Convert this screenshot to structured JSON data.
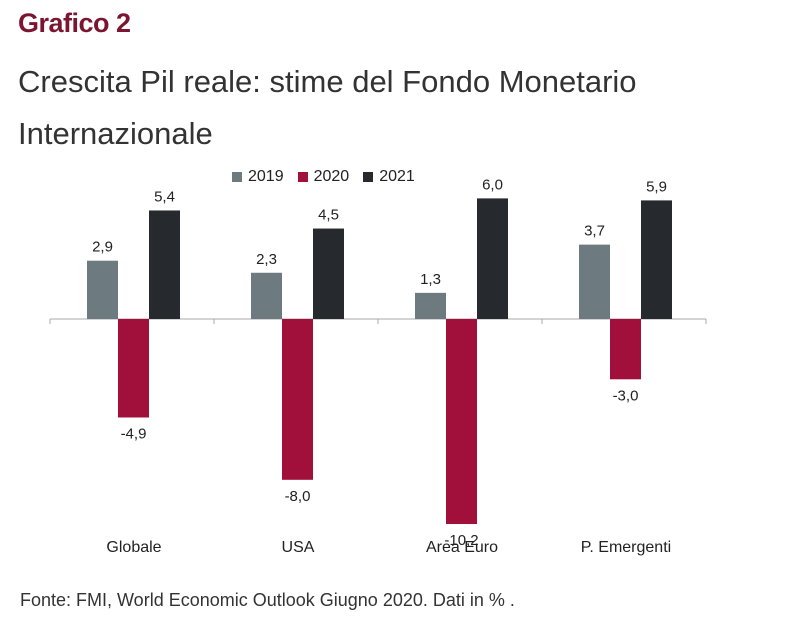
{
  "header_label": "Grafico 2",
  "title": "Crescita Pil reale: stime del Fondo Monetario Internazionale",
  "source": "Fonte: FMI, World Economic Outlook Giugno 2020. Dati in % .",
  "colors": {
    "2019": "#6d7b80",
    "2020": "#a10f3b",
    "2021": "#262a2e",
    "accent": "#7b1530"
  },
  "chart_data": {
    "type": "bar",
    "title": "Crescita Pil reale: stime del Fondo Monetario Internazionale",
    "categories": [
      "Globale",
      "USA",
      "Area Euro",
      "P. Emergenti"
    ],
    "series": [
      {
        "name": "2019",
        "values": [
          2.9,
          2.3,
          1.3,
          3.7
        ],
        "labels": [
          "2,9",
          "2,3",
          "1,3",
          "3,7"
        ]
      },
      {
        "name": "2020",
        "values": [
          -4.9,
          -8.0,
          -10.2,
          -3.0
        ],
        "labels": [
          "-4,9",
          "-8,0",
          "-10,2",
          "-3,0"
        ]
      },
      {
        "name": "2021",
        "values": [
          5.4,
          4.5,
          6.0,
          5.9
        ],
        "labels": [
          "5,4",
          "4,5",
          "6,0",
          "5,9"
        ]
      }
    ],
    "ylim": [
      -10.2,
      6.0
    ],
    "grid": false,
    "legend_position": "top-center"
  }
}
